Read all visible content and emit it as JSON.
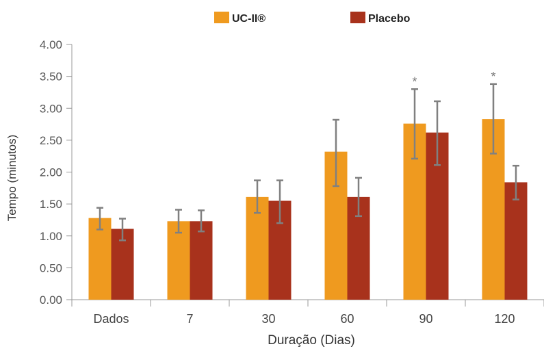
{
  "chart_data": {
    "type": "bar",
    "categories": [
      "Dados",
      "7",
      "30",
      "60",
      "90",
      "120"
    ],
    "series": [
      {
        "name": "UC-II®",
        "color": "#ef9a1f",
        "values": [
          1.28,
          1.23,
          1.61,
          2.32,
          2.76,
          2.83
        ],
        "error_low": [
          1.1,
          1.05,
          1.36,
          1.78,
          2.21,
          2.29
        ],
        "error_high": [
          1.44,
          1.41,
          1.87,
          2.82,
          3.3,
          3.38
        ],
        "significance": [
          "",
          "",
          "",
          "",
          "*",
          "*"
        ]
      },
      {
        "name": "Placebo",
        "color": "#a8321c",
        "values": [
          1.11,
          1.23,
          1.55,
          1.61,
          2.62,
          1.84
        ],
        "error_low": [
          0.93,
          1.07,
          1.2,
          1.31,
          2.11,
          1.57
        ],
        "error_high": [
          1.27,
          1.4,
          1.87,
          1.91,
          3.11,
          2.1
        ],
        "significance": [
          "",
          "",
          "",
          "",
          "",
          ""
        ]
      }
    ],
    "xlabel": "Duração (Dias)",
    "ylabel": "Tempo (minutos)",
    "ylim": [
      0,
      4
    ],
    "yticks": [
      "0.00",
      "0.50",
      "1.00",
      "1.50",
      "2.00",
      "2.50",
      "3.00",
      "3.50",
      "4.00"
    ],
    "error_bar_color": "#808080",
    "axis_color": "#999999",
    "grid": false,
    "legend_position": "top-center"
  }
}
